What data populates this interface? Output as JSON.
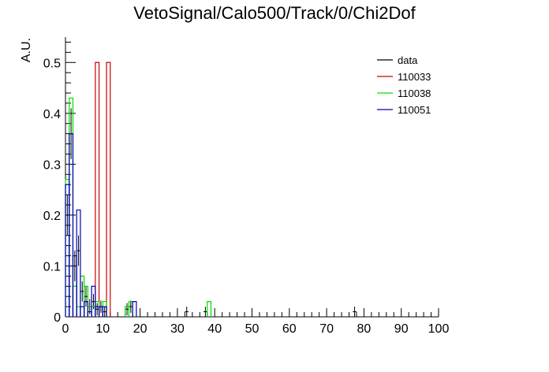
{
  "chart_data": {
    "type": "histogram",
    "title": "VetoSignal/Calo500/Track/0/Chi2Dof",
    "xlabel": "",
    "ylabel": "A.U.",
    "xlim": [
      0,
      100
    ],
    "ylim": [
      0,
      0.55
    ],
    "xticks": [
      0,
      10,
      20,
      30,
      40,
      50,
      60,
      70,
      80,
      90,
      100
    ],
    "xtick_labels": [
      "0",
      "10",
      "20",
      "30",
      "40",
      "50",
      "60",
      "70",
      "80",
      "90",
      "100"
    ],
    "yticks": [
      0,
      0.1,
      0.2,
      0.3,
      0.4,
      0.5
    ],
    "ytick_labels": [
      "0",
      "0.1",
      "0.2",
      "0.3",
      "0.4",
      "0.5"
    ],
    "bin_width": 1,
    "legend_position": "top-right",
    "series": [
      {
        "name": "data",
        "color": "#000000",
        "style": "points-with-errors",
        "points": [
          {
            "x": 0.5,
            "y": 0.2,
            "err": 0.04
          },
          {
            "x": 1.5,
            "y": 0.36,
            "err": 0.05
          },
          {
            "x": 2.5,
            "y": 0.1,
            "err": 0.03
          },
          {
            "x": 3.5,
            "y": 0.13,
            "err": 0.03
          },
          {
            "x": 4.5,
            "y": 0.05,
            "err": 0.02
          },
          {
            "x": 5.5,
            "y": 0.04,
            "err": 0.02
          },
          {
            "x": 6.5,
            "y": 0.02,
            "err": 0.015
          },
          {
            "x": 7.5,
            "y": 0.03,
            "err": 0.015
          },
          {
            "x": 8.5,
            "y": 0.015,
            "err": 0.012
          },
          {
            "x": 9.5,
            "y": 0.02,
            "err": 0.012
          },
          {
            "x": 10.5,
            "y": 0.01,
            "err": 0.01
          },
          {
            "x": 16.5,
            "y": 0.015,
            "err": 0.012
          },
          {
            "x": 17.5,
            "y": 0.02,
            "err": 0.012
          },
          {
            "x": 32.5,
            "y": 0.01,
            "err": 0.01
          },
          {
            "x": 37.5,
            "y": 0.01,
            "err": 0.01
          },
          {
            "x": 77.5,
            "y": 0.01,
            "err": 0.01
          }
        ]
      },
      {
        "name": "110033",
        "color": "#cc0000",
        "style": "step",
        "bins": [
          {
            "x0": 8,
            "x1": 9,
            "y": 0.5
          },
          {
            "x0": 11,
            "x1": 12,
            "y": 0.5
          }
        ]
      },
      {
        "name": "110038",
        "color": "#00dd00",
        "style": "step",
        "bins": [
          {
            "x0": 0,
            "x1": 1,
            "y": 0.27
          },
          {
            "x0": 1,
            "x1": 2,
            "y": 0.43
          },
          {
            "x0": 2,
            "x1": 3,
            "y": 0.06
          },
          {
            "x0": 3,
            "x1": 4,
            "y": 0.02
          },
          {
            "x0": 4,
            "x1": 5,
            "y": 0.08
          },
          {
            "x0": 5,
            "x1": 6,
            "y": 0.06
          },
          {
            "x0": 6,
            "x1": 7,
            "y": 0.02
          },
          {
            "x0": 7,
            "x1": 8,
            "y": 0.02
          },
          {
            "x0": 8,
            "x1": 9,
            "y": 0.03
          },
          {
            "x0": 10,
            "x1": 11,
            "y": 0.03
          },
          {
            "x0": 16,
            "x1": 17,
            "y": 0.02
          },
          {
            "x0": 17,
            "x1": 18,
            "y": 0.03
          },
          {
            "x0": 38,
            "x1": 39,
            "y": 0.03
          }
        ]
      },
      {
        "name": "110051",
        "color": "#0000aa",
        "style": "step",
        "bins": [
          {
            "x0": 0,
            "x1": 1,
            "y": 0.26
          },
          {
            "x0": 1,
            "x1": 2,
            "y": 0.36
          },
          {
            "x0": 2,
            "x1": 3,
            "y": 0.12
          },
          {
            "x0": 3,
            "x1": 4,
            "y": 0.21
          },
          {
            "x0": 4,
            "x1": 5,
            "y": 0.02
          },
          {
            "x0": 5,
            "x1": 6,
            "y": 0.03
          },
          {
            "x0": 6,
            "x1": 7,
            "y": 0.01
          },
          {
            "x0": 7,
            "x1": 8,
            "y": 0.06
          },
          {
            "x0": 8,
            "x1": 9,
            "y": 0.02
          },
          {
            "x0": 9,
            "x1": 10,
            "y": 0.02
          },
          {
            "x0": 10,
            "x1": 11,
            "y": 0.02
          },
          {
            "x0": 18,
            "x1": 19,
            "y": 0.03
          }
        ]
      }
    ]
  }
}
